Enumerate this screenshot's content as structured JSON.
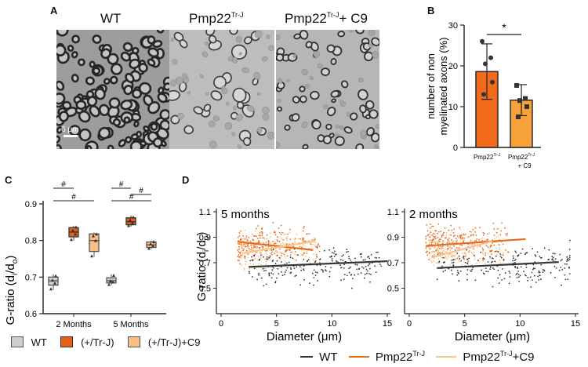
{
  "figure": {
    "panels": {
      "A": {
        "label": "A",
        "images": [
          {
            "title": "WT",
            "scale_bar": "6 μm"
          },
          {
            "title_main": "Pmp22",
            "title_sup": "Tr-J",
            "title_suffix": ""
          },
          {
            "title_main": "Pmp22",
            "title_sup": "Tr-J",
            "title_suffix": "+ C9"
          }
        ]
      },
      "B": {
        "label": "B",
        "significance": "*"
      },
      "C": {
        "label": "C",
        "significance": "#"
      },
      "D": {
        "label": "D"
      }
    }
  },
  "chart_data": [
    {
      "panel": "B",
      "type": "bar",
      "ylabel": "number of non myelinated axons (%)",
      "ylim": [
        0,
        30
      ],
      "yticks": [
        0,
        10,
        20,
        30
      ],
      "categories": [
        {
          "main": "Pmp22",
          "sup": "Tr-J",
          "suffix": ""
        },
        {
          "main": "Pmp22",
          "sup": "Tr-J",
          "suffix": "+ C9"
        }
      ],
      "values": [
        18.6,
        11.6
      ],
      "errors": [
        6.8,
        3.8
      ],
      "points": [
        [
          26,
          22,
          20.5,
          16,
          13
        ],
        [
          15.2,
          12,
          11.5,
          10,
          7.5
        ]
      ],
      "colors": [
        "#f26a1b",
        "#f6a13a"
      ],
      "annotation": "*"
    },
    {
      "panel": "C",
      "type": "box",
      "ylabel_main": "G-ratio (d",
      "ylabel_sub1": "i",
      "ylabel_mid": "/d",
      "ylabel_sub2": "o",
      "ylabel_end": ")",
      "ylim": [
        0.6,
        0.9
      ],
      "yticks": [
        0.6,
        0.7,
        0.8,
        0.9
      ],
      "categories": [
        "2 Months",
        "5 Months"
      ],
      "legend": [
        "WT",
        "(+/Tr-J)",
        "(+/Tr-J)+C9"
      ],
      "colors": [
        "#cfcfcf",
        "#ea5f16",
        "#fbbd86"
      ],
      "boxes": [
        [
          [
            0.665,
            0.678,
            0.69,
            0.7,
            0.708
          ],
          [
            0.8,
            0.81,
            0.823,
            0.835,
            0.84
          ],
          [
            0.755,
            0.77,
            0.8,
            0.818,
            0.822
          ]
        ],
        [
          [
            0.678,
            0.684,
            0.69,
            0.698,
            0.708
          ],
          [
            0.838,
            0.843,
            0.851,
            0.862,
            0.868
          ],
          [
            0.777,
            0.781,
            0.788,
            0.796,
            0.8
          ]
        ]
      ],
      "points": [
        [
          [
            0.668,
            0.684,
            0.692,
            0.704
          ],
          [
            0.803,
            0.818,
            0.828,
            0.837
          ],
          [
            0.758,
            0.8,
            0.813,
            0.818
          ]
        ],
        [
          [
            0.68,
            0.687,
            0.69,
            0.705
          ],
          [
            0.841,
            0.849,
            0.856,
            0.864
          ],
          [
            0.779,
            0.786,
            0.791,
            0.797
          ]
        ]
      ],
      "annotation": "#"
    },
    {
      "panel": "D",
      "type": "scatter",
      "plots": [
        {
          "title": "5 months",
          "lines": [
            {
              "x": [
                2.5,
                15
              ],
              "y": [
                0.667,
                0.712
              ]
            },
            {
              "x": [
                1.5,
                8.3
              ],
              "y": [
                0.865,
                0.8
              ]
            },
            {
              "x": [
                2.0,
                8.5
              ],
              "y": [
                0.775,
                0.87
              ]
            }
          ]
        },
        {
          "title": "2 months",
          "lines": [
            {
              "x": [
                2.5,
                13.5
              ],
              "y": [
                0.658,
                0.705
              ]
            },
            {
              "x": [
                1.5,
                10.5
              ],
              "y": [
                0.832,
                0.885
              ]
            },
            {
              "x": [
                2.0,
                7.5
              ],
              "y": [
                0.74,
                0.868
              ]
            }
          ]
        }
      ],
      "xlabel": "Diameter (μm)",
      "ylabel_main": "G-ratio (d",
      "ylabel_sub1": "i",
      "ylabel_mid": "/d",
      "ylabel_sub2": "o",
      "ylabel_end": ")",
      "xlim": [
        0,
        15
      ],
      "ylim": [
        0.3,
        1.1
      ],
      "xticks": [
        0,
        5,
        10,
        15
      ],
      "yticks": [
        0.5,
        0.7,
        0.9,
        1.1
      ],
      "legend": [
        {
          "main": "WT",
          "sup": ""
        },
        {
          "main": "Pmp22",
          "sup": "Tr-J"
        },
        {
          "main": "Pmp22",
          "sup": "Tr-J",
          "suffix": "+C9"
        }
      ],
      "colors": [
        "#333333",
        "#ea6a1c",
        "#f7c48e"
      ]
    }
  ]
}
